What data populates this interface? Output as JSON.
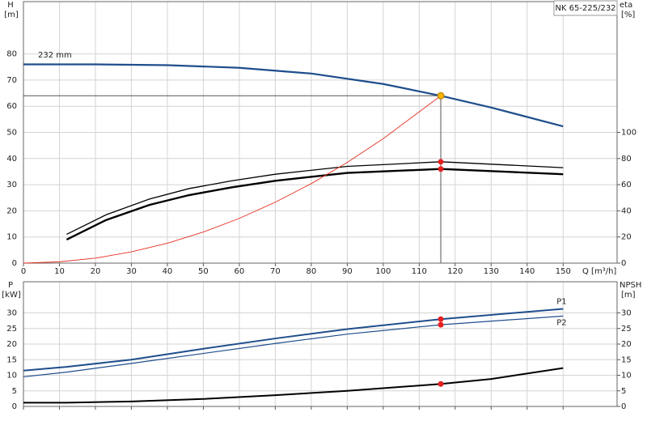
{
  "chart_data": [
    {
      "type": "line",
      "title": "NK 65-225/232",
      "ylabel": "H",
      "yunit": "[m]",
      "y2label": "eta",
      "y2unit": "[%]",
      "xlabel": "Q [m³/h]",
      "annotation": "232 mm",
      "xlim": [
        0,
        165
      ],
      "xticks": [
        0,
        10,
        20,
        30,
        40,
        50,
        60,
        70,
        80,
        90,
        100,
        110,
        120,
        130,
        140,
        150
      ],
      "ylim": [
        0,
        100
      ],
      "yticks": [
        0,
        10,
        20,
        30,
        40,
        50,
        60,
        70,
        80
      ],
      "y2lim": [
        0,
        200
      ],
      "y2ticks": [
        0,
        20,
        40,
        60,
        80,
        100
      ],
      "grid": true,
      "series": [
        {
          "color": "#1f4e8c",
          "width": 2.2,
          "x": [
            0,
            20,
            40,
            60,
            80,
            100,
            116,
            130,
            150
          ],
          "values": [
            76,
            76,
            75.7,
            74.7,
            72.5,
            68.5,
            64,
            59.5,
            52.3
          ]
        },
        {
          "color": "#000000",
          "width": 1.3,
          "axis": "y2",
          "x": [
            12,
            23,
            35,
            46,
            58,
            70,
            90,
            116,
            150
          ],
          "values": [
            22,
            37,
            49,
            57,
            63,
            68,
            74,
            77.5,
            73
          ]
        },
        {
          "color": "#000000",
          "width": 2.4,
          "axis": "y2",
          "x": [
            12,
            23,
            35,
            46,
            58,
            70,
            90,
            116,
            150
          ],
          "values": [
            18,
            33,
            44.5,
            52,
            58,
            63,
            69,
            72,
            68
          ]
        },
        {
          "color": "#e53020",
          "width": 0.9,
          "x": [
            0,
            10,
            20,
            30,
            40,
            50,
            60,
            70,
            80,
            90,
            100,
            116
          ],
          "values": [
            0,
            0.5,
            1.9,
            4.3,
            7.6,
            11.9,
            17.1,
            23.3,
            30.4,
            38.5,
            47.6,
            64
          ]
        }
      ],
      "markers": [
        {
          "x": 116,
          "y": 77.5,
          "axis": "y2",
          "color": "#e52020"
        },
        {
          "x": 116,
          "y": 72,
          "axis": "y2",
          "color": "#e52020"
        }
      ],
      "duty_point": {
        "x": 116,
        "y": 64,
        "color": "#f5b400"
      }
    },
    {
      "type": "line",
      "ylabel": "P",
      "yunit": "[kW]",
      "y2label": "NPSH",
      "y2unit": "[m]",
      "xlim": [
        0,
        165
      ],
      "ylim": [
        0,
        40
      ],
      "yticks": [
        0,
        5,
        10,
        15,
        20,
        25,
        30
      ],
      "y2lim": [
        0,
        40
      ],
      "y2ticks": [
        0,
        5,
        10,
        15,
        20,
        25,
        30
      ],
      "grid": true,
      "series": [
        {
          "name": "P1",
          "color": "#1f4e8c",
          "width": 2,
          "x": [
            0,
            12,
            30,
            50,
            70,
            90,
            116,
            150
          ],
          "values": [
            11.5,
            12.7,
            15,
            18.5,
            21.8,
            24.8,
            28,
            31.3
          ]
        },
        {
          "name": "P2",
          "color": "#1f4e8c",
          "width": 1.2,
          "x": [
            0,
            12,
            30,
            50,
            70,
            90,
            116,
            150
          ],
          "values": [
            9.5,
            11,
            13.8,
            17,
            20.2,
            23.2,
            26.2,
            29
          ]
        },
        {
          "color": "#000000",
          "width": 2,
          "axis": "y2",
          "x": [
            0,
            12,
            30,
            50,
            70,
            90,
            116,
            130,
            150
          ],
          "values": [
            1.2,
            1.2,
            1.6,
            2.4,
            3.6,
            5,
            7.2,
            8.8,
            12.3
          ]
        }
      ],
      "markers": [
        {
          "x": 116,
          "y": 28,
          "color": "#e52020"
        },
        {
          "x": 116,
          "y": 26.2,
          "color": "#e52020"
        },
        {
          "x": 116,
          "y": 7.2,
          "axis": "y2",
          "color": "#e52020"
        }
      ]
    }
  ]
}
